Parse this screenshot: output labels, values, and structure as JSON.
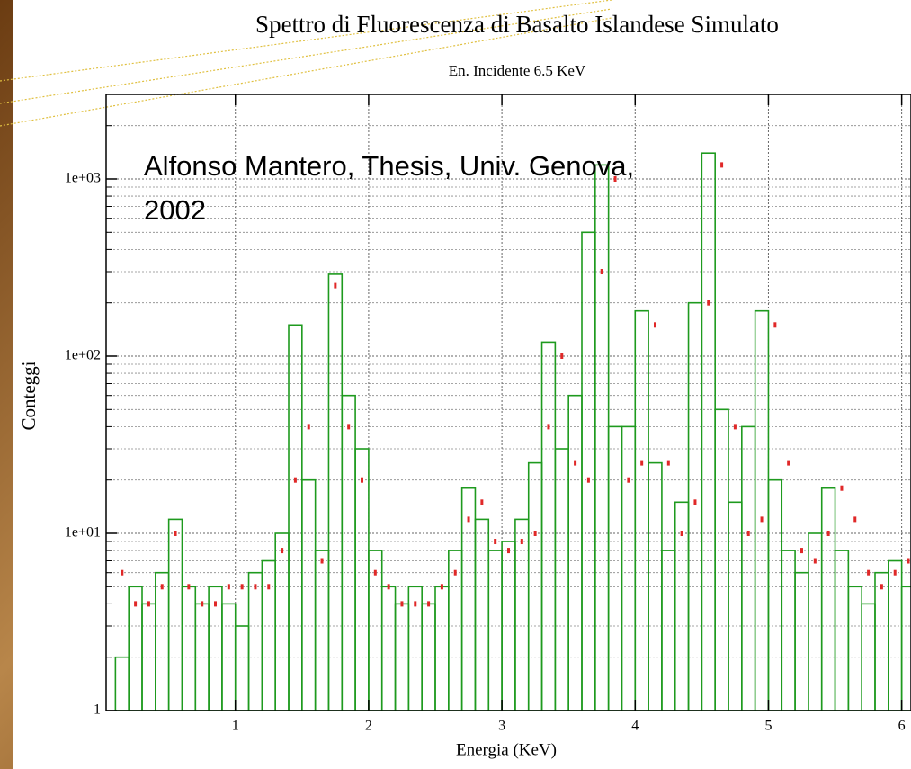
{
  "chart_data": {
    "type": "histogram",
    "title": "Spettro di Fluorescenza di Basalto Islandese Simulato",
    "subtitle": "En. Incidente 6.5 KeV",
    "xlabel": "Energia (KeV)",
    "ylabel": "Conteggi",
    "annotation": [
      "Alfonso Mantero, Thesis, Univ. Genova,",
      "2002"
    ],
    "log_y": true,
    "grid": true,
    "xlim": [
      0.03,
      6.07
    ],
    "ylim": [
      1,
      3000
    ],
    "xticks": [
      1,
      2,
      3,
      4,
      5,
      6
    ],
    "yticks": [
      1,
      {
        "value": 10,
        "label": "1e+01"
      },
      {
        "value": 100,
        "label": "1e+02"
      },
      {
        "value": 1000,
        "label": "1e+03"
      }
    ],
    "yminorticks": [
      2,
      3,
      4,
      5,
      6,
      7,
      8,
      9,
      20,
      30,
      40,
      50,
      60,
      70,
      80,
      90,
      200,
      300,
      400,
      500,
      600,
      700,
      800,
      900,
      2000,
      3000
    ],
    "color": "#1e9a1e",
    "bins": [
      0.1,
      0.2,
      0.3,
      0.4,
      0.5,
      0.6,
      0.7,
      0.8,
      0.9,
      1.0,
      1.1,
      1.2,
      1.3,
      1.4,
      1.5,
      1.6,
      1.7,
      1.8,
      1.9,
      2.0,
      2.1,
      2.2,
      2.3,
      2.4,
      2.5,
      2.6,
      2.7,
      2.8,
      2.9,
      3.0,
      3.1,
      3.2,
      3.3,
      3.4,
      3.5,
      3.6,
      3.7,
      3.8,
      3.9,
      4.0,
      4.1,
      4.2,
      4.3,
      4.4,
      4.5,
      4.6,
      4.7,
      4.8,
      4.9,
      5.0,
      5.1,
      5.2,
      5.3,
      5.4,
      5.5,
      5.6,
      5.7,
      5.8,
      5.9,
      6.0,
      6.1
    ],
    "values": [
      2,
      5,
      4,
      6,
      12,
      5,
      4,
      5,
      4,
      3,
      6,
      7,
      10,
      150,
      20,
      8,
      290,
      60,
      30,
      8,
      5,
      4,
      5,
      4,
      5,
      8,
      18,
      12,
      8,
      9,
      12,
      25,
      120,
      30,
      60,
      500,
      1200,
      40,
      40,
      180,
      25,
      8,
      15,
      200,
      1400,
      50,
      15,
      40,
      180,
      20,
      8,
      6,
      10,
      18,
      8,
      5,
      4,
      6,
      7,
      5
    ],
    "points": {
      "color": "#e02828",
      "x": [
        0.15,
        0.25,
        0.35,
        0.45,
        0.55,
        0.65,
        0.75,
        0.85,
        0.95,
        1.05,
        1.15,
        1.25,
        1.35,
        1.45,
        1.55,
        1.65,
        1.75,
        1.85,
        1.95,
        2.05,
        2.15,
        2.25,
        2.35,
        2.45,
        2.55,
        2.65,
        2.75,
        2.85,
        2.95,
        3.05,
        3.15,
        3.25,
        3.35,
        3.45,
        3.55,
        3.65,
        3.75,
        3.85,
        3.95,
        4.05,
        4.15,
        4.25,
        4.35,
        4.45,
        4.55,
        4.65,
        4.75,
        4.85,
        4.95,
        5.05,
        5.15,
        5.25,
        5.35,
        5.45,
        5.55,
        5.65,
        5.75,
        5.85,
        5.95,
        6.05
      ],
      "values": [
        6,
        4,
        4,
        5,
        10,
        5,
        4,
        4,
        5,
        5,
        5,
        5,
        8,
        20,
        40,
        7,
        250,
        40,
        20,
        6,
        5,
        4,
        4,
        4,
        5,
        6,
        12,
        15,
        9,
        8,
        9,
        10,
        40,
        100,
        25,
        20,
        300,
        1000,
        20,
        25,
        150,
        25,
        10,
        15,
        200,
        1200,
        40,
        10,
        12,
        150,
        25,
        8,
        7,
        10,
        18,
        12,
        6,
        5,
        6,
        7
      ]
    }
  }
}
